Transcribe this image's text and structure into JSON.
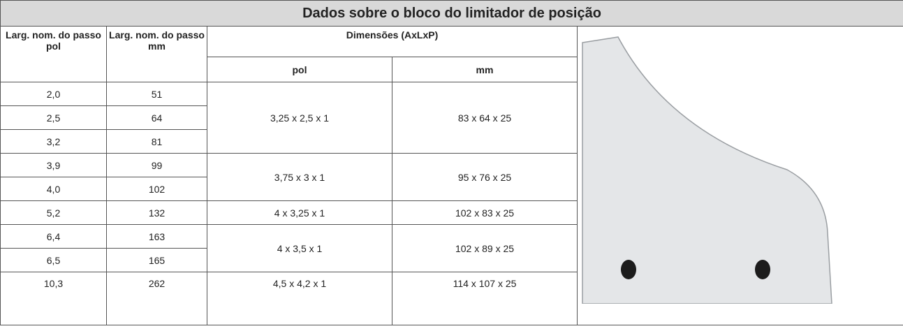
{
  "title": "Dados sobre o bloco do limitador de posição",
  "header": {
    "col1": "Larg. nom. do passo pol",
    "col2": "Larg. nom. do passo mm",
    "dimensions": "Dimensões (AxLxP)",
    "pol": "pol",
    "mm": "mm"
  },
  "rows": [
    [
      "2,0",
      "51"
    ],
    [
      "2,5",
      "64"
    ],
    [
      "3,2",
      "81"
    ],
    [
      "3,9",
      "99"
    ],
    [
      "4,0",
      "102"
    ],
    [
      "5,2",
      "132"
    ],
    [
      "6,4",
      "163"
    ],
    [
      "6,5",
      "165"
    ],
    [
      "10,3",
      "262"
    ]
  ],
  "dimension_groups": [
    {
      "pol": "3,25 x 2,5 x 1",
      "mm": "83 x 64 x 25"
    },
    {
      "pol": "3,75 x 3 x 1",
      "mm": "95 x 76 x 25"
    },
    {
      "pol": "4 x 3,25 x 1",
      "mm": "102 x 83 x 25"
    },
    {
      "pol": "4 x 3,5 x 1",
      "mm": "102 x 89 x 25"
    },
    {
      "pol": "4,5 x 4,2 x 1",
      "mm": "114 x 107 x 25"
    }
  ]
}
